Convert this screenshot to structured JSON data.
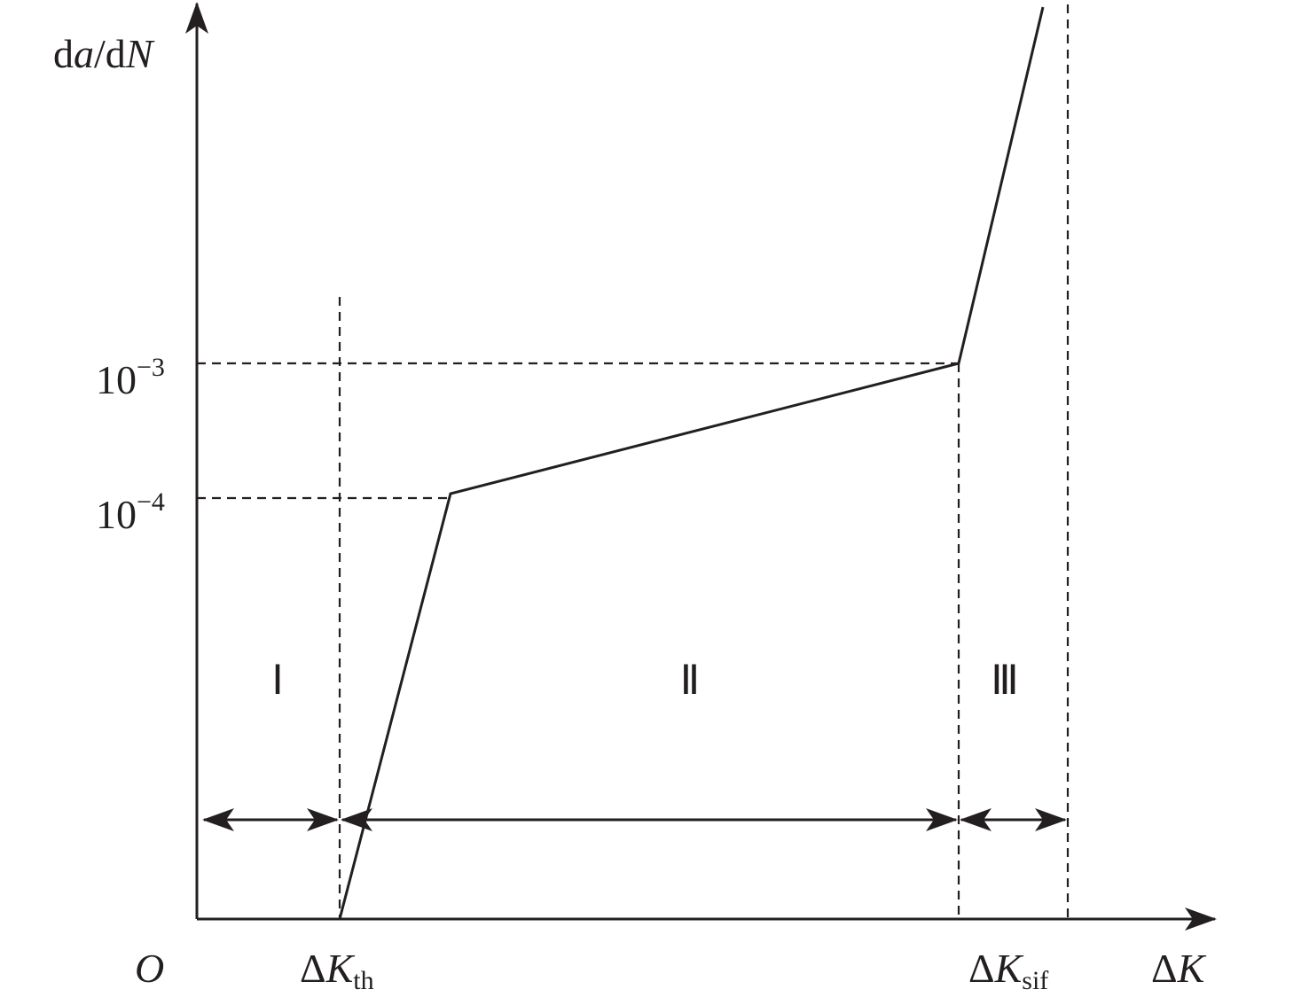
{
  "axes": {
    "y_label": [
      "d",
      "a",
      "/d",
      "N"
    ],
    "x_label": [
      "Δ",
      "K"
    ],
    "origin": "O"
  },
  "y_marks": [
    {
      "base": "10",
      "exponent": "−3"
    },
    {
      "base": "10",
      "exponent": "−4"
    }
  ],
  "x_marks": [
    {
      "delta": "Δ",
      "var": "K",
      "subscript": "th"
    },
    {
      "delta": "Δ",
      "var": "K",
      "subscript": "sif"
    }
  ],
  "regions": [
    "Ⅰ",
    "Ⅱ",
    "Ⅲ"
  ]
}
